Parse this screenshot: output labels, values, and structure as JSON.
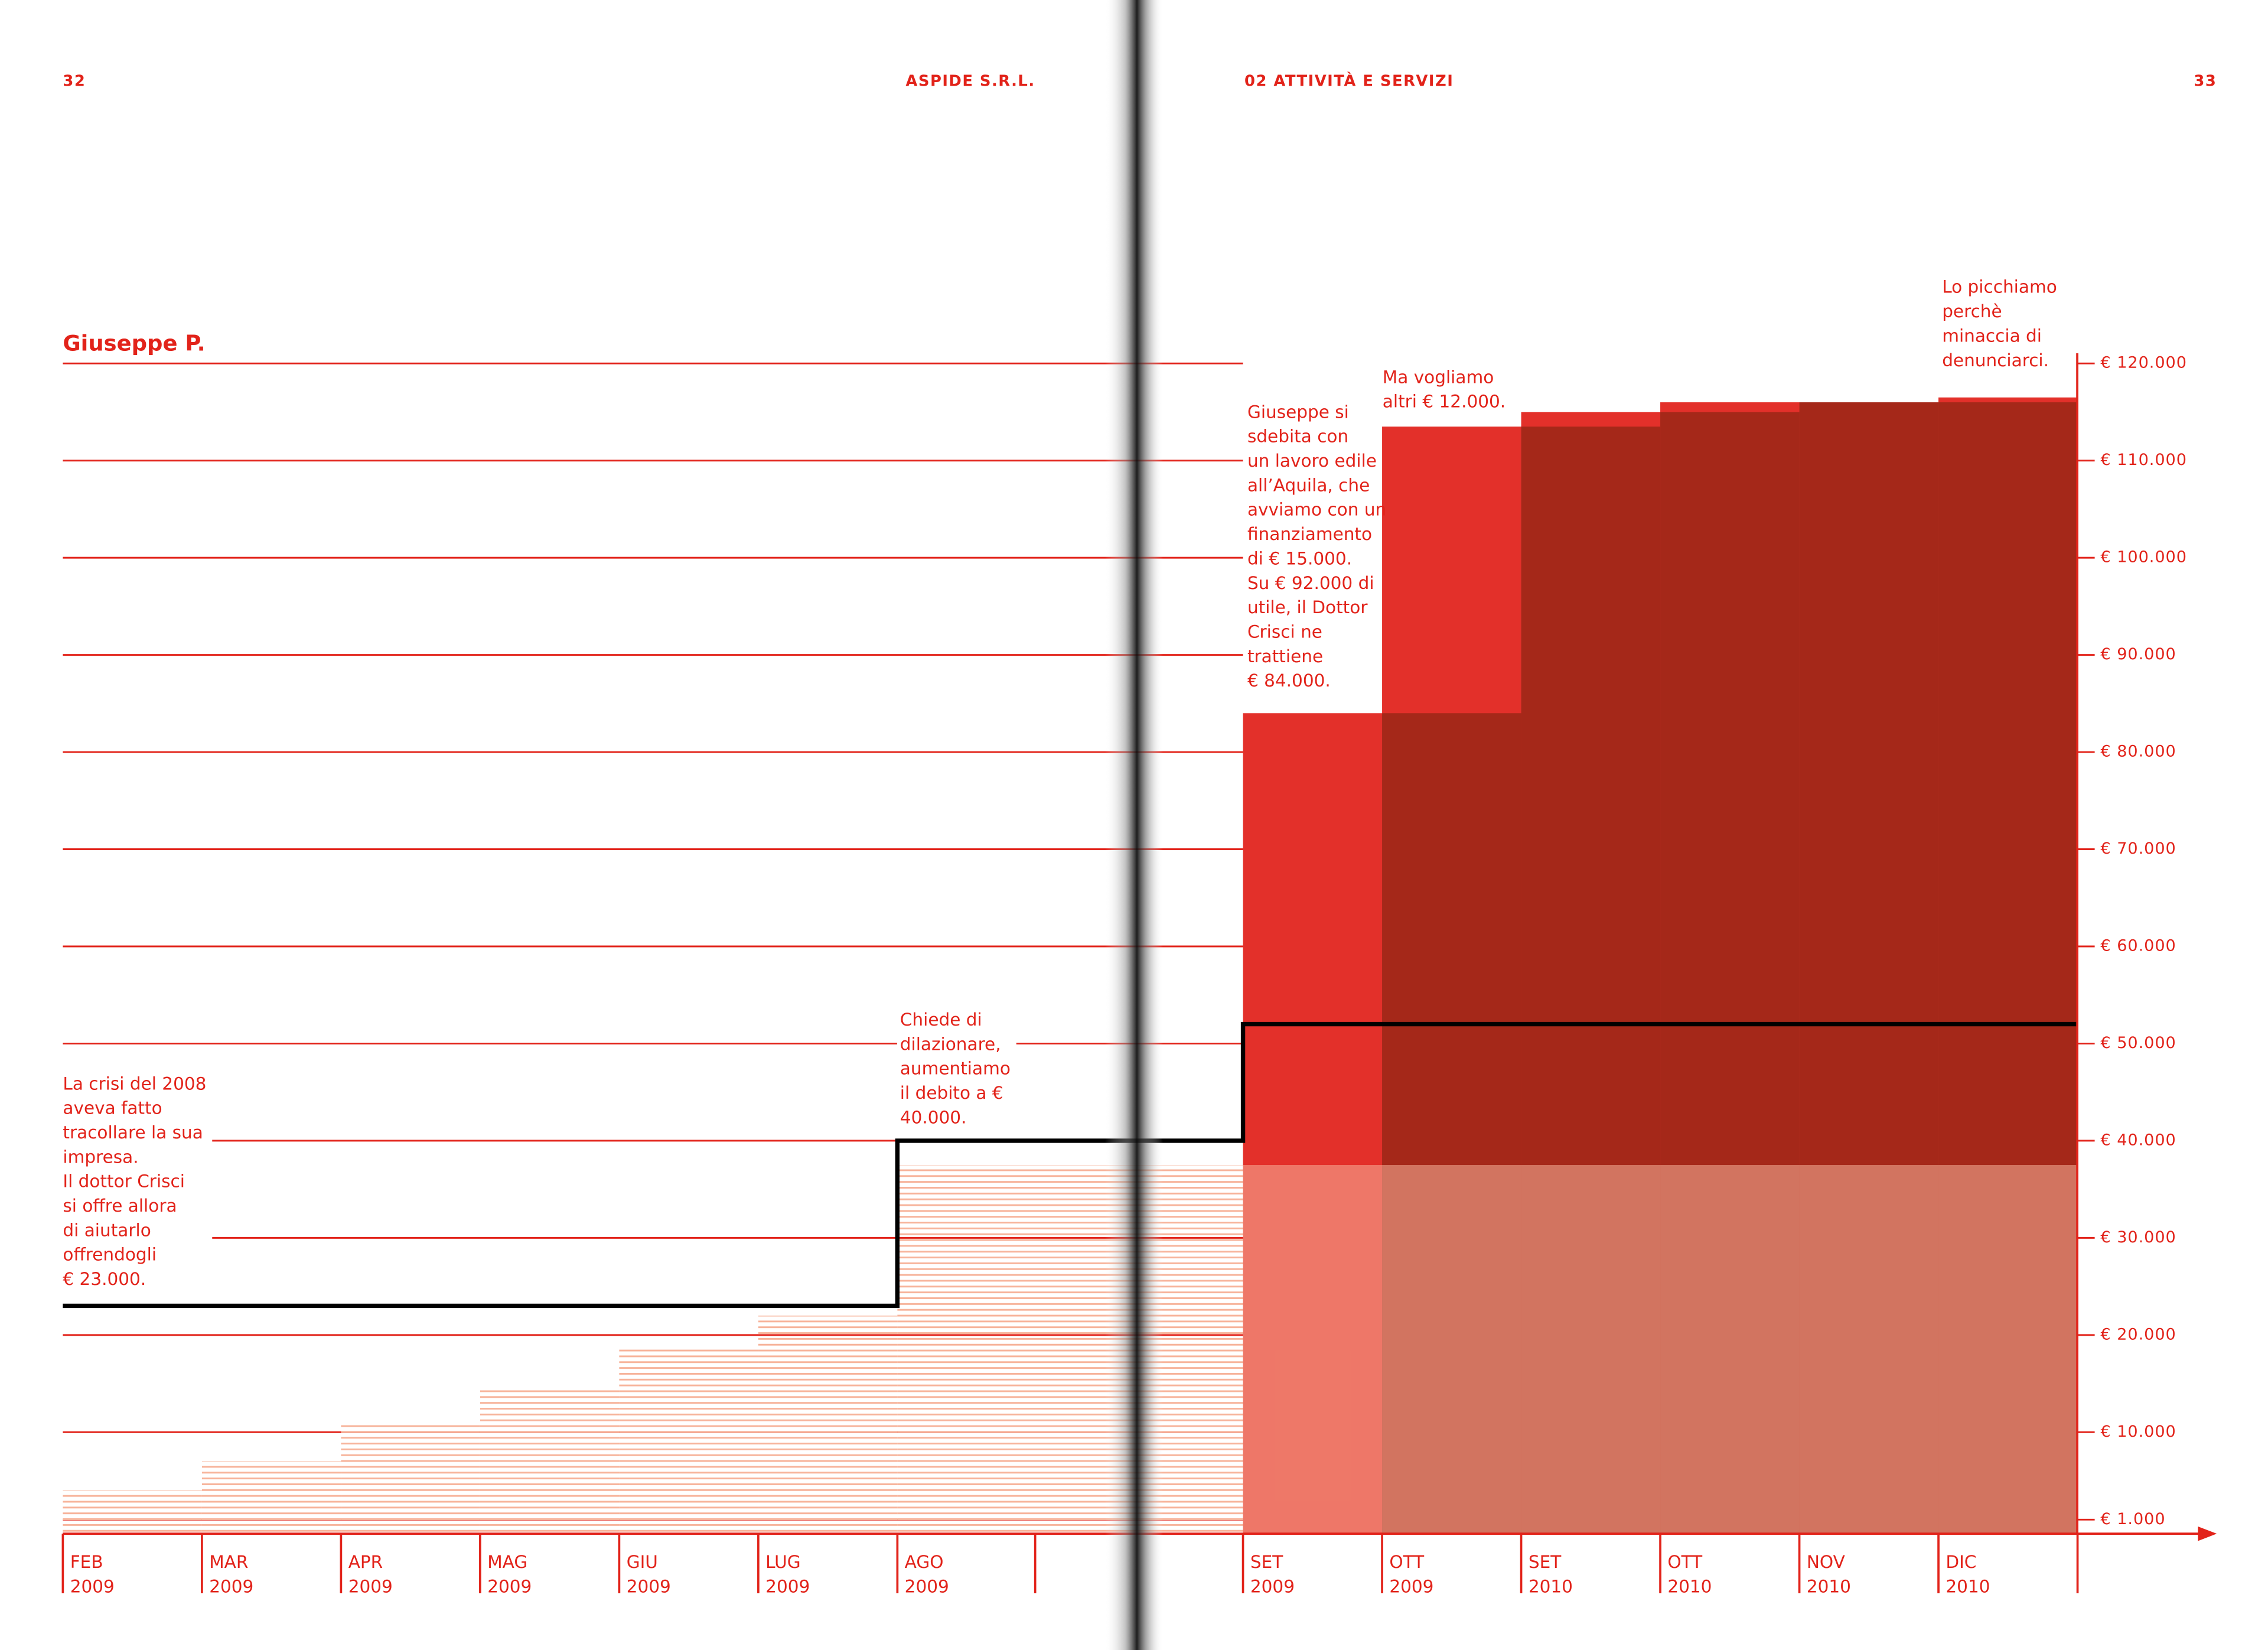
{
  "header": {
    "left_page_number": "32",
    "left_running_title": "ASPIDE S.R.L.",
    "right_running_title": "02 ATTIVITÀ E SERVIZI",
    "right_page_number": "33"
  },
  "chart_data": {
    "type": "step",
    "title": "Giuseppe P.",
    "categories": [
      [
        "FEB",
        "2009"
      ],
      [
        "MAR",
        "2009"
      ],
      [
        "APR",
        "2009"
      ],
      [
        "MAG",
        "2009"
      ],
      [
        "GIU",
        "2009"
      ],
      [
        "LUG",
        "2009"
      ],
      [
        "AGO",
        "2009"
      ],
      [
        "SET",
        "2009"
      ],
      [
        "OTT",
        "2009"
      ],
      [
        "SET",
        "2010"
      ],
      [
        "OTT",
        "2010"
      ],
      [
        "NOV",
        "2010"
      ],
      [
        "DIC",
        "2010"
      ]
    ],
    "series": [
      {
        "color": "#e3302a",
        "dark_color": "#a52819",
        "values": [
          null,
          null,
          null,
          null,
          null,
          null,
          null,
          84000,
          113500,
          115000,
          116000,
          116000,
          116500
        ]
      },
      {
        "color": "#f7b39a",
        "values": [
          4000,
          7000,
          11000,
          14500,
          18500,
          22000,
          37500,
          37500,
          37500,
          37500,
          37500,
          37500,
          37500
        ]
      },
      {
        "color": "#000000",
        "values": [
          23000,
          23000,
          23000,
          23000,
          23000,
          23000,
          40000,
          52000,
          52000,
          52000,
          52000,
          52000,
          52000
        ]
      }
    ],
    "ylim": [
      0,
      120000
    ],
    "yticks": [
      {
        "value": 1000,
        "label": "€ 1.000"
      },
      {
        "value": 10000,
        "label": "€ 10.000"
      },
      {
        "value": 20000,
        "label": "€ 20.000"
      },
      {
        "value": 30000,
        "label": "€ 30.000"
      },
      {
        "value": 40000,
        "label": "€ 40.000"
      },
      {
        "value": 50000,
        "label": "€ 50.000"
      },
      {
        "value": 60000,
        "label": "€ 60.000"
      },
      {
        "value": 70000,
        "label": "€ 70.000"
      },
      {
        "value": 80000,
        "label": "€ 80.000"
      },
      {
        "value": 90000,
        "label": "€ 90.000"
      },
      {
        "value": 100000,
        "label": "€ 100.000"
      },
      {
        "value": 110000,
        "label": "€ 110.000"
      },
      {
        "value": 120000,
        "label": "€ 120.000"
      }
    ],
    "grid": true,
    "annotations": [
      {
        "lines": [
          "La crisi del 2008",
          "aveva fatto",
          "tracollare la sua",
          "impresa.",
          "Il dottor Crisci",
          "si offre allora",
          "di aiutarlo",
          "offrendogli",
          "€ 23.000."
        ]
      },
      {
        "lines": [
          "Chiede di",
          "dilazionare,",
          "aumentiamo",
          "il debito a €",
          "40.000."
        ]
      },
      {
        "lines": [
          "Giuseppe si",
          "sdebita con",
          "un lavoro edile",
          "all’Aquila, che",
          "avviamo con un",
          "finanziamento",
          "di € 15.000.",
          "Su € 92.000 di",
          "utile, il Dottor",
          "Crisci ne",
          "trattiene",
          "€ 84.000."
        ]
      },
      {
        "lines": [
          "Ma vogliamo",
          "altri € 12.000."
        ]
      },
      {
        "lines": [
          "Lo picchiamo",
          "perchè",
          "minaccia di",
          "denunciarci."
        ]
      }
    ]
  }
}
